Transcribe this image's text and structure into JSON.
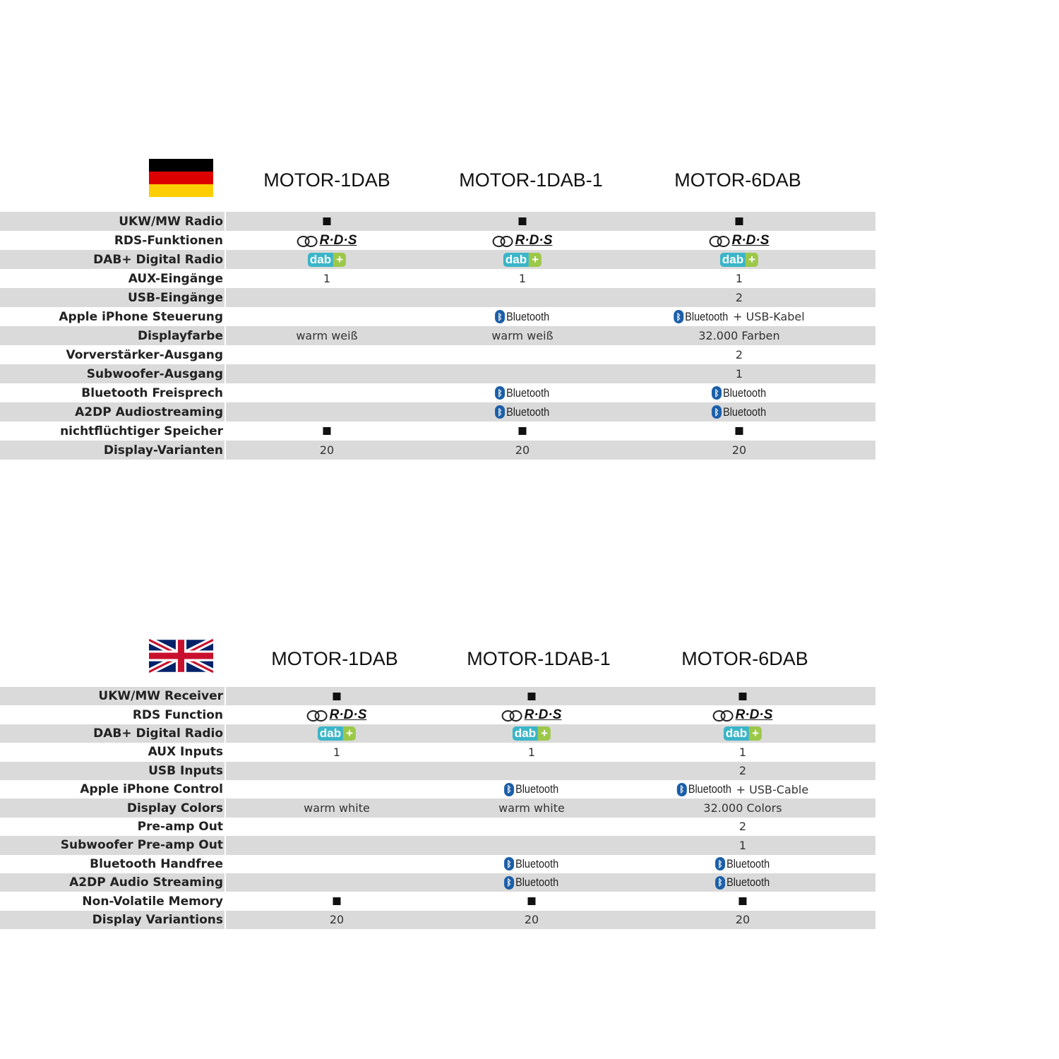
{
  "sections": [
    {
      "flag": "germany",
      "models": [
        "MOTOR-1DAB",
        "MOTOR-1DAB-1",
        "MOTOR-6DAB"
      ],
      "rows": [
        {
          "label": "UKW/MW Radio",
          "cells": [
            {
              "type": "square"
            },
            {
              "type": "square"
            },
            {
              "type": "square"
            }
          ]
        },
        {
          "label": "RDS-Funktionen",
          "cells": [
            {
              "type": "rds",
              "text": "R·D·S"
            },
            {
              "type": "rds",
              "text": "R·D·S"
            },
            {
              "type": "rds",
              "text": "R·D·S"
            }
          ]
        },
        {
          "label": "DAB+ Digital Radio",
          "cells": [
            {
              "type": "dab",
              "text": "dab"
            },
            {
              "type": "dab",
              "text": "dab"
            },
            {
              "type": "dab",
              "text": "dab"
            }
          ]
        },
        {
          "label": "AUX-Eingänge",
          "cells": [
            {
              "type": "text",
              "text": "1"
            },
            {
              "type": "text",
              "text": "1"
            },
            {
              "type": "text",
              "text": "1"
            }
          ]
        },
        {
          "label": "USB-Eingänge",
          "cells": [
            null,
            null,
            {
              "type": "text",
              "text": "2"
            }
          ]
        },
        {
          "label": "Apple iPhone Steuerung",
          "cells": [
            null,
            {
              "type": "bt",
              "text": "Bluetooth"
            },
            {
              "type": "bt",
              "text": "Bluetooth",
              "extra": "+ USB-Kabel"
            }
          ]
        },
        {
          "label": "Displayfarbe",
          "cells": [
            {
              "type": "text",
              "text": "warm weiß"
            },
            {
              "type": "text",
              "text": "warm weiß"
            },
            {
              "type": "text",
              "text": "32.000 Farben"
            }
          ]
        },
        {
          "label": "Vorverstärker-Ausgang",
          "cells": [
            null,
            null,
            {
              "type": "text",
              "text": "2"
            }
          ]
        },
        {
          "label": "Subwoofer-Ausgang",
          "cells": [
            null,
            null,
            {
              "type": "text",
              "text": "1"
            }
          ]
        },
        {
          "label": "Bluetooth Freisprech",
          "cells": [
            null,
            {
              "type": "bt",
              "text": "Bluetooth"
            },
            {
              "type": "bt",
              "text": "Bluetooth"
            }
          ]
        },
        {
          "label": "A2DP Audiostreaming",
          "cells": [
            null,
            {
              "type": "bt",
              "text": "Bluetooth"
            },
            {
              "type": "bt",
              "text": "Bluetooth"
            }
          ]
        },
        {
          "label": "nichtflüchtiger Speicher",
          "cells": [
            {
              "type": "square"
            },
            {
              "type": "square"
            },
            {
              "type": "square"
            }
          ]
        },
        {
          "label": "Display-Varianten",
          "cells": [
            {
              "type": "text",
              "text": "20"
            },
            {
              "type": "text",
              "text": "20"
            },
            {
              "type": "text",
              "text": "20"
            }
          ]
        }
      ]
    },
    {
      "flag": "united-kingdom",
      "models": [
        "MOTOR-1DAB",
        "MOTOR-1DAB-1",
        "MOTOR-6DAB"
      ],
      "rows": [
        {
          "label": "UKW/MW Receiver",
          "cells": [
            {
              "type": "square"
            },
            {
              "type": "square"
            },
            {
              "type": "square"
            }
          ]
        },
        {
          "label": "RDS Function",
          "cells": [
            {
              "type": "rds",
              "text": "R·D·S"
            },
            {
              "type": "rds",
              "text": "R·D·S"
            },
            {
              "type": "rds",
              "text": "R·D·S"
            }
          ]
        },
        {
          "label": "DAB+ Digital Radio",
          "cells": [
            {
              "type": "dab",
              "text": "dab"
            },
            {
              "type": "dab",
              "text": "dab"
            },
            {
              "type": "dab",
              "text": "dab"
            }
          ]
        },
        {
          "label": "AUX Inputs",
          "cells": [
            {
              "type": "text",
              "text": "1"
            },
            {
              "type": "text",
              "text": "1"
            },
            {
              "type": "text",
              "text": "1"
            }
          ]
        },
        {
          "label": "USB Inputs",
          "cells": [
            null,
            null,
            {
              "type": "text",
              "text": "2"
            }
          ]
        },
        {
          "label": "Apple iPhone Control",
          "cells": [
            null,
            {
              "type": "bt",
              "text": "Bluetooth"
            },
            {
              "type": "bt",
              "text": "Bluetooth",
              "extra": "+ USB-Cable"
            }
          ]
        },
        {
          "label": "Display Colors",
          "cells": [
            {
              "type": "text",
              "text": "warm white"
            },
            {
              "type": "text",
              "text": "warm white"
            },
            {
              "type": "text",
              "text": "32.000 Colors"
            }
          ]
        },
        {
          "label": "Pre-amp Out",
          "cells": [
            null,
            null,
            {
              "type": "text",
              "text": "2"
            }
          ]
        },
        {
          "label": "Subwoofer Pre-amp Out",
          "cells": [
            null,
            null,
            {
              "type": "text",
              "text": "1"
            }
          ]
        },
        {
          "label": "Bluetooth Handfree",
          "cells": [
            null,
            {
              "type": "bt",
              "text": "Bluetooth"
            },
            {
              "type": "bt",
              "text": "Bluetooth"
            }
          ]
        },
        {
          "label": "A2DP Audio Streaming",
          "cells": [
            null,
            {
              "type": "bt",
              "text": "Bluetooth"
            },
            {
              "type": "bt",
              "text": "Bluetooth"
            }
          ]
        },
        {
          "label": "Non-Volatile Memory",
          "cells": [
            {
              "type": "square"
            },
            {
              "type": "square"
            },
            {
              "type": "square"
            }
          ]
        },
        {
          "label": "Display Variantions",
          "cells": [
            {
              "type": "text",
              "text": "20"
            },
            {
              "type": "text",
              "text": "20"
            },
            {
              "type": "text",
              "text": "20"
            }
          ]
        }
      ]
    }
  ],
  "colors": {
    "row_stripe": "#dadada",
    "bluetooth": "#1c5fa8",
    "dab": "#3bb5c8",
    "dab_plus": "#9cc84a"
  }
}
